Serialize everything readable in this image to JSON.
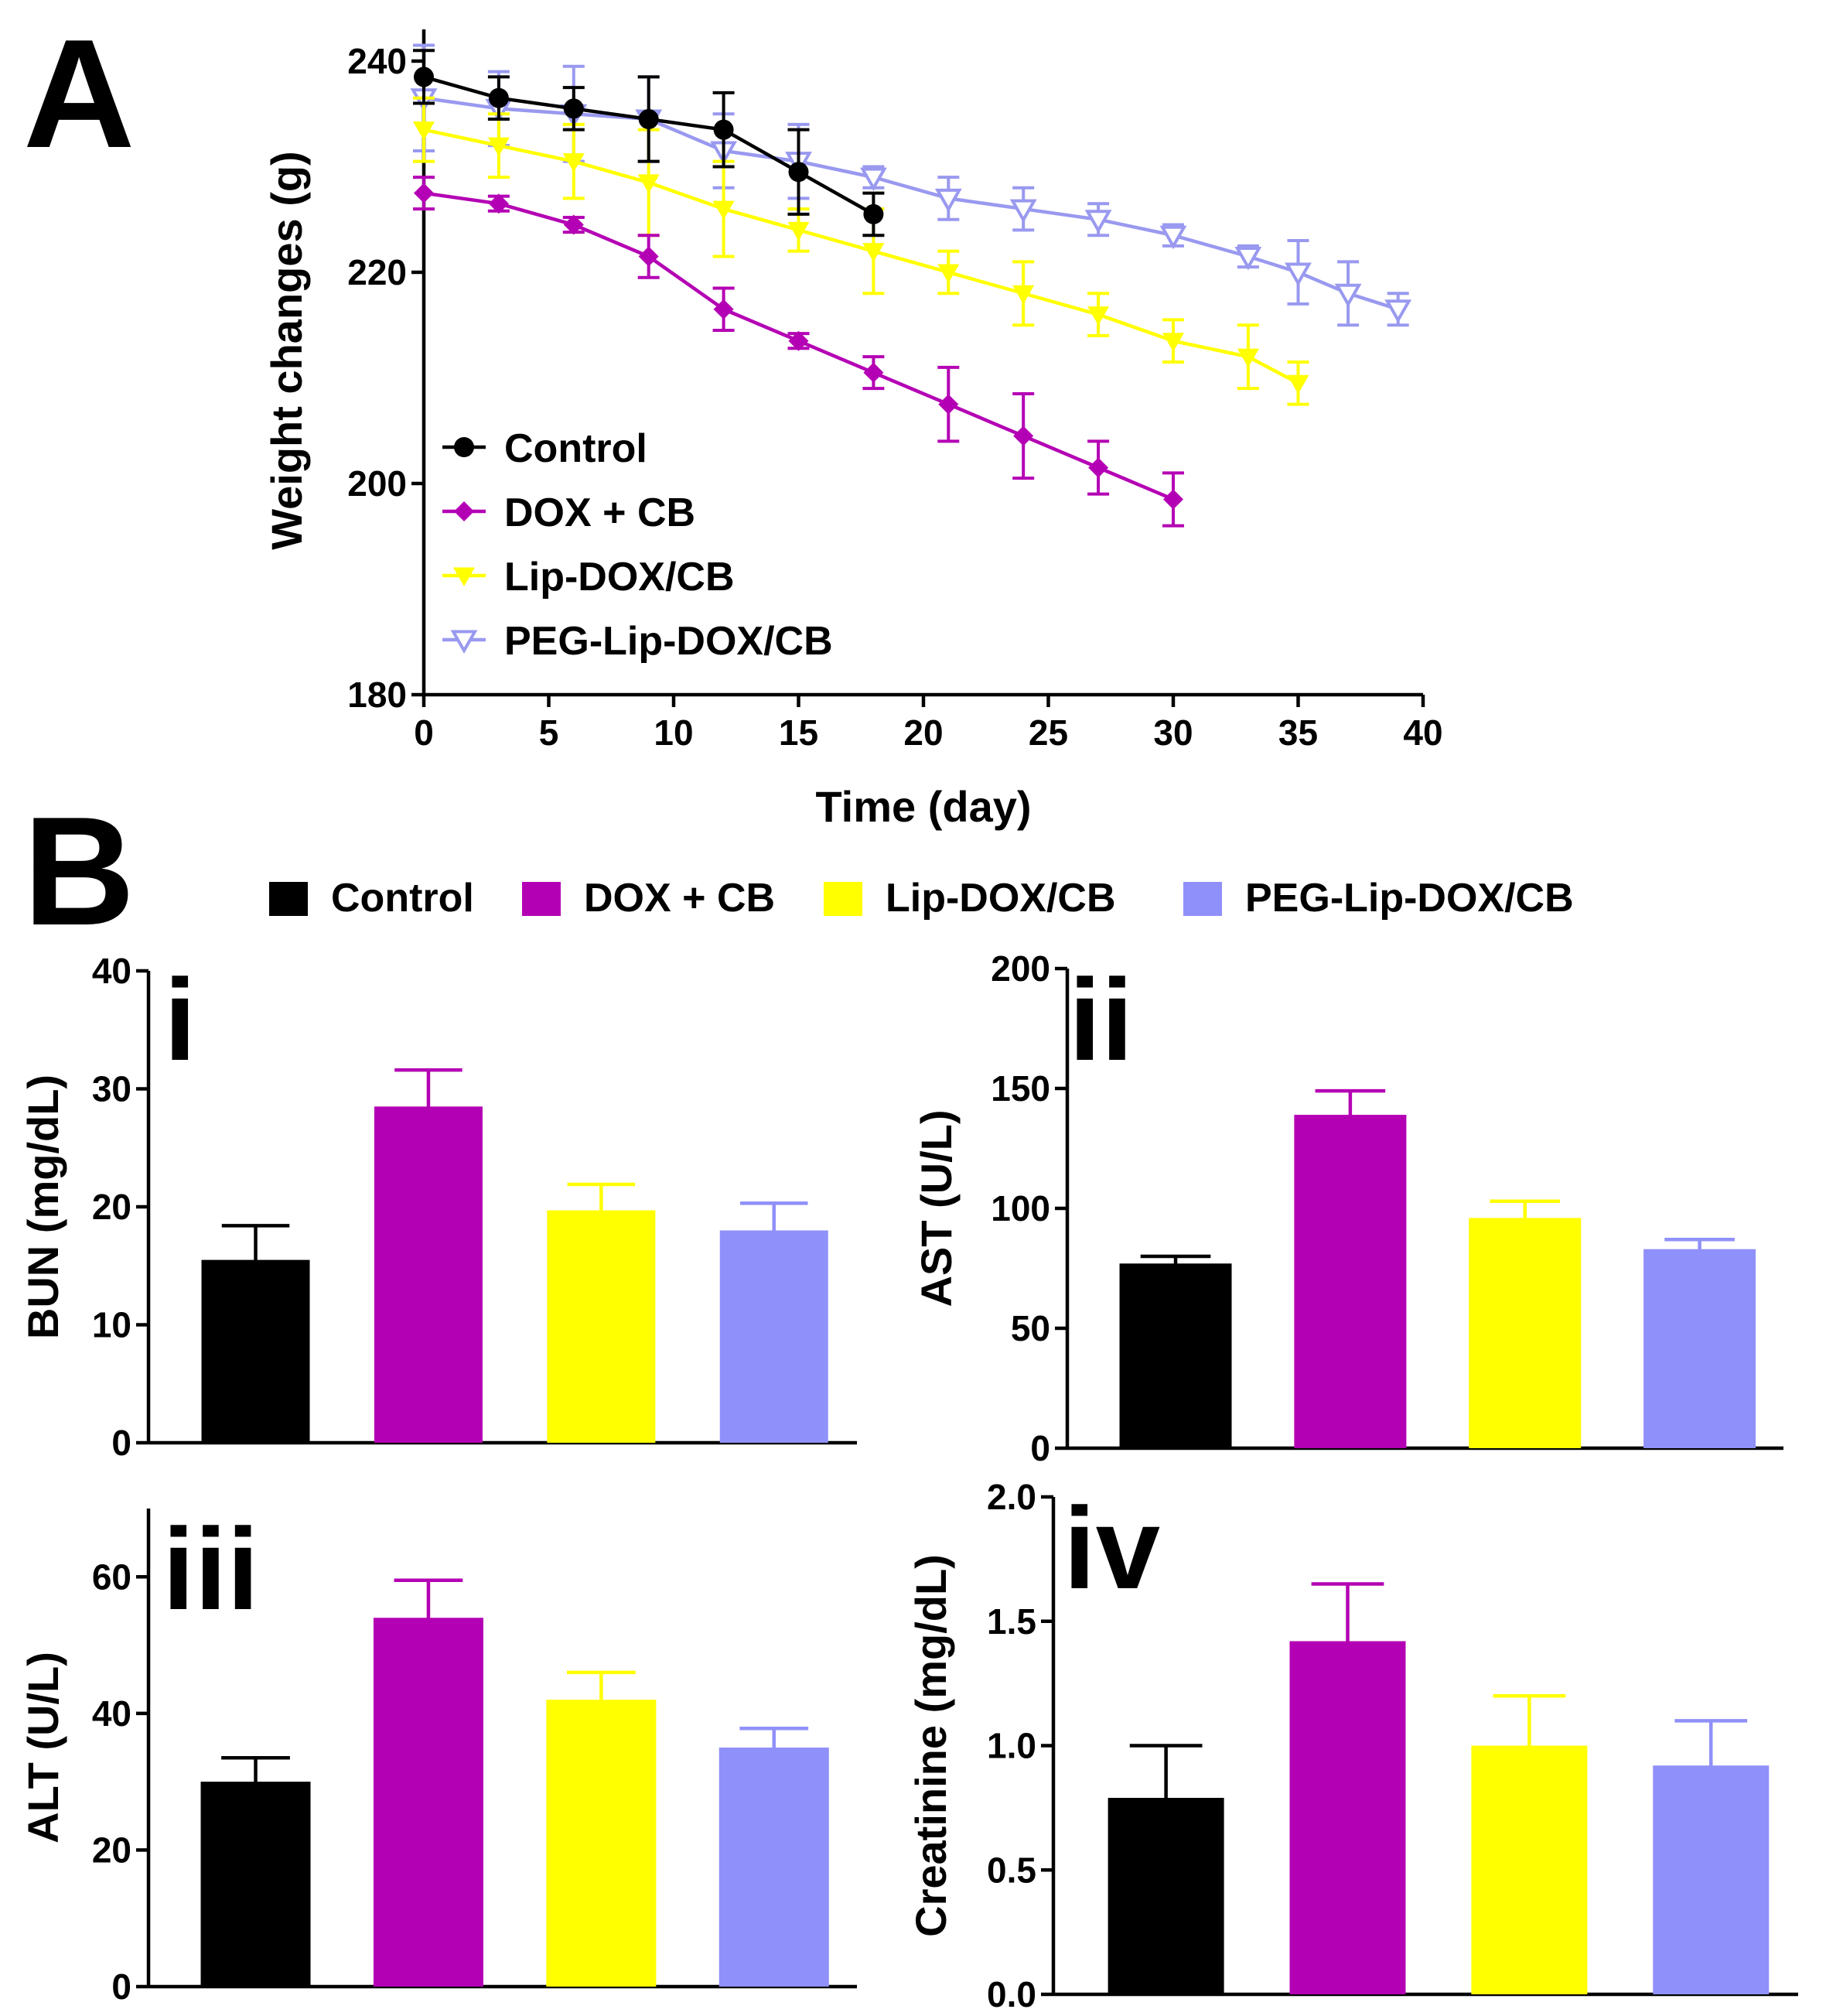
{
  "panel_a_letter": "A",
  "panel_b_letter": "B",
  "chart_data": [
    {
      "id": "A",
      "type": "line",
      "xlabel": "Time (day)",
      "ylabel": "Weight changes (g)",
      "xlim": [
        0,
        40
      ],
      "ylim": [
        180,
        243
      ],
      "xticks": [
        "0",
        "5",
        "10",
        "15",
        "20",
        "25",
        "30",
        "35",
        "40"
      ],
      "yticks": [
        "180",
        "200",
        "220",
        "240"
      ],
      "legend_position": "bottom-left",
      "series": [
        {
          "name": "Control",
          "color": "#000000",
          "marker": "circle",
          "x": [
            0,
            3,
            6,
            9,
            12,
            15,
            18
          ],
          "y": [
            238.5,
            236.5,
            235.5,
            234.5,
            233.5,
            229.5,
            225.5
          ],
          "err": [
            2.5,
            2.0,
            2.0,
            4.0,
            3.5,
            4.0,
            2.0
          ]
        },
        {
          "name": "DOX + CB",
          "color": "#B400B4",
          "marker": "diamond",
          "x": [
            0,
            3,
            6,
            9,
            12,
            15,
            18,
            21,
            24,
            27,
            30
          ],
          "y": [
            227.5,
            226.5,
            224.5,
            221.5,
            216.5,
            213.5,
            210.5,
            207.5,
            204.5,
            201.5,
            198.5
          ],
          "err": [
            1.5,
            0.7,
            0.7,
            2.0,
            2.0,
            0.7,
            1.5,
            3.5,
            4.0,
            2.5,
            2.5
          ]
        },
        {
          "name": "Lip-DOX/CB",
          "color": "#FFFF00",
          "marker": "triangle-down",
          "x": [
            0,
            3,
            6,
            9,
            12,
            15,
            18,
            21,
            24,
            27,
            30,
            33,
            35
          ],
          "y": [
            233.5,
            232.0,
            230.5,
            228.5,
            226.0,
            224.0,
            222.0,
            220.0,
            218.0,
            216.0,
            213.5,
            212.0,
            209.5
          ],
          "err": [
            3.0,
            3.0,
            3.5,
            5.0,
            4.5,
            2.0,
            4.0,
            2.0,
            3.0,
            2.0,
            2.0,
            3.0,
            2.0
          ]
        },
        {
          "name": "PEG-Lip-DOX/CB",
          "color": "#9999F0",
          "marker": "triangle-down-open",
          "x": [
            0,
            3,
            6,
            9,
            12,
            15,
            18,
            21,
            24,
            27,
            30,
            33,
            35,
            37,
            39
          ],
          "y": [
            236.5,
            235.5,
            235.0,
            234.5,
            231.5,
            230.5,
            229.0,
            227.0,
            226.0,
            225.0,
            223.5,
            221.5,
            220.0,
            218.0,
            216.5
          ],
          "err": [
            5.0,
            3.5,
            4.5,
            4.0,
            3.5,
            3.5,
            1.0,
            2.0,
            2.0,
            1.5,
            1.0,
            1.0,
            3.0,
            3.0,
            1.5
          ]
        }
      ]
    },
    {
      "id": "B-i",
      "type": "bar",
      "subpanel_label": "i",
      "ylabel": "BUN (mg/dL)",
      "ylim": [
        0,
        40
      ],
      "yticks": [
        "0",
        "10",
        "20",
        "30",
        "40"
      ],
      "categories": [
        "Control",
        "DOX + CB",
        "Lip-DOX/CB",
        "PEG-Lip-DOX/CB"
      ],
      "values": [
        15.5,
        28.5,
        19.7,
        18.0
      ],
      "errors": [
        2.9,
        3.1,
        2.2,
        2.3
      ],
      "colors": [
        "#000000",
        "#B400B4",
        "#FFFF00",
        "#9090FA"
      ]
    },
    {
      "id": "B-ii",
      "type": "bar",
      "subpanel_label": "ii",
      "ylabel": "AST (U/L)",
      "ylim": [
        0,
        200
      ],
      "yticks": [
        "0",
        "50",
        "100",
        "150",
        "200"
      ],
      "categories": [
        "Control",
        "DOX + CB",
        "Lip-DOX/CB",
        "PEG-Lip-DOX/CB"
      ],
      "values": [
        77,
        139,
        96,
        83
      ],
      "errors": [
        3,
        10,
        7,
        4
      ],
      "colors": [
        "#000000",
        "#B400B4",
        "#FFFF00",
        "#9090FA"
      ]
    },
    {
      "id": "B-iii",
      "type": "bar",
      "subpanel_label": "iii",
      "ylabel": "ALT (U/L)",
      "ylim": [
        0,
        70
      ],
      "yticks": [
        "0",
        "20",
        "40",
        "60"
      ],
      "categories": [
        "Control",
        "DOX + CB",
        "Lip-DOX/CB",
        "PEG-Lip-DOX/CB"
      ],
      "values": [
        30,
        54,
        42,
        35
      ],
      "errors": [
        3.5,
        5.5,
        4.0,
        2.8
      ],
      "colors": [
        "#000000",
        "#B400B4",
        "#FFFF00",
        "#9090FA"
      ]
    },
    {
      "id": "B-iv",
      "type": "bar",
      "subpanel_label": "iv",
      "ylabel": "Creatinine (mg/dL)",
      "ylim": [
        0,
        2.0
      ],
      "yticks": [
        "0.0",
        "0.5",
        "1.0",
        "1.5",
        "2.0"
      ],
      "categories": [
        "Control",
        "DOX + CB",
        "Lip-DOX/CB",
        "PEG-Lip-DOX/CB"
      ],
      "values": [
        0.79,
        1.42,
        1.0,
        0.92
      ],
      "errors": [
        0.21,
        0.23,
        0.2,
        0.18
      ],
      "colors": [
        "#000000",
        "#B400B4",
        "#FFFF00",
        "#9090FA"
      ]
    }
  ]
}
